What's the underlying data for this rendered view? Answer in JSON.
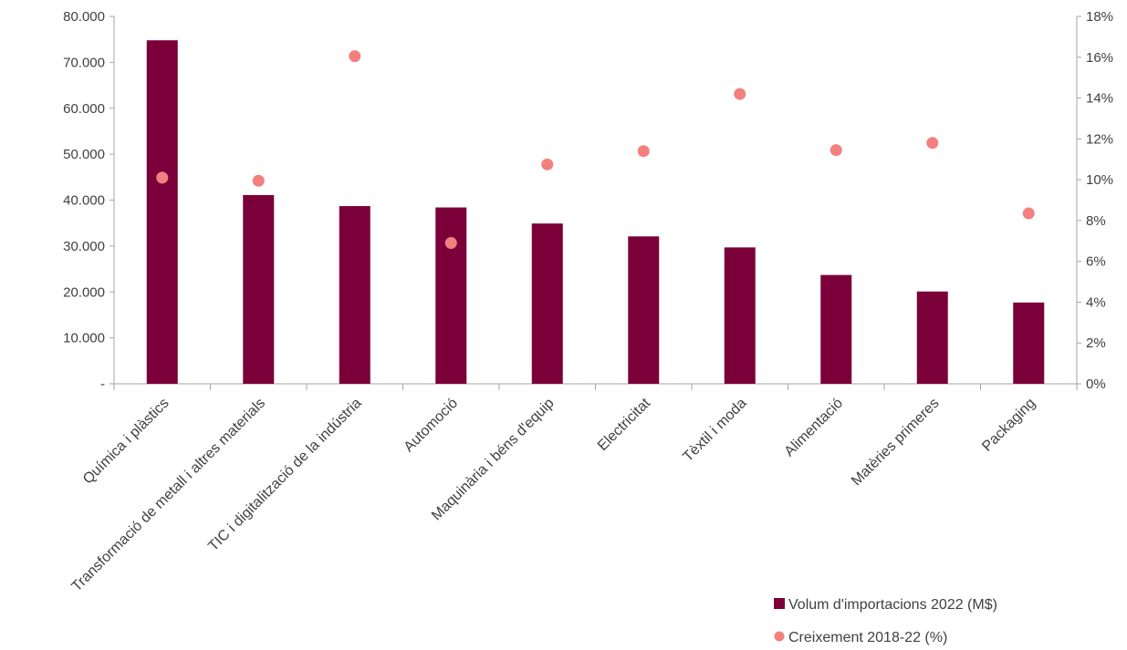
{
  "chart_data": {
    "type": "bar",
    "categories": [
      "Química i plàstics",
      "Transformació de metall i altres materials",
      "TIC i digitalització de la indústria",
      "Automoció",
      "Maquinària i béns d'equip",
      "Electricitat",
      "Tèxtil i moda",
      "Alimentació",
      "Matèries primeres",
      "Packaging"
    ],
    "series": [
      {
        "name": "Volum d'importacions 2022 (M$)",
        "type": "bar",
        "axis": "left",
        "color": "#7b003a",
        "values": [
          74800,
          41100,
          38700,
          38400,
          34900,
          32100,
          29700,
          23700,
          20100,
          17700
        ]
      },
      {
        "name": "Creixement 2018-22 (%)",
        "type": "scatter",
        "axis": "right",
        "color": "#f47f7f",
        "values": [
          10.1,
          9.95,
          16.05,
          6.9,
          10.75,
          11.4,
          14.2,
          11.45,
          11.8,
          8.35
        ]
      }
    ],
    "y_left": {
      "ylim": [
        0,
        80000
      ],
      "tick_values": [
        0,
        10000,
        20000,
        30000,
        40000,
        50000,
        60000,
        70000,
        80000
      ],
      "tick_labels": [
        "-",
        "10.000",
        "20.000",
        "30.000",
        "40.000",
        "50.000",
        "60.000",
        "70.000",
        "80.000"
      ]
    },
    "y_right": {
      "ylim": [
        0,
        18
      ],
      "tick_values": [
        0,
        2,
        4,
        6,
        8,
        10,
        12,
        14,
        16,
        18
      ],
      "tick_labels": [
        "0%",
        "2%",
        "4%",
        "6%",
        "8%",
        "10%",
        "12%",
        "14%",
        "16%",
        "18%"
      ]
    },
    "title": "",
    "xlabel": "",
    "ylabel": "",
    "grid": false,
    "legend_position": "bottom-right"
  }
}
